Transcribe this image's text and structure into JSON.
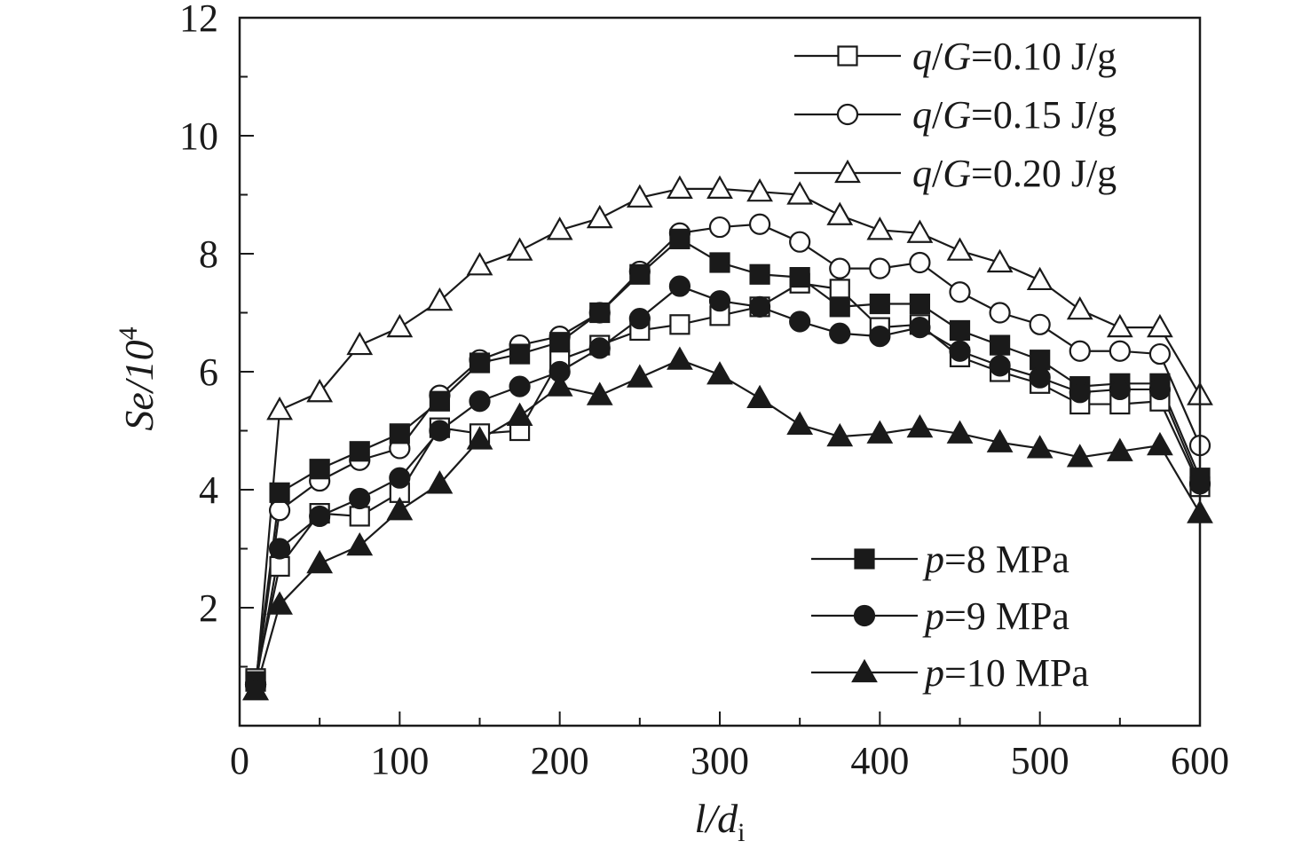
{
  "chart_data": {
    "type": "line",
    "xlabel": {
      "main": "l/d",
      "sub": "i"
    },
    "ylabel": {
      "main": "Se/10",
      "sup": "4"
    },
    "xlim": [
      0,
      600
    ],
    "ylim": [
      0,
      12
    ],
    "xticks": [
      0,
      100,
      200,
      300,
      400,
      500,
      600
    ],
    "yticks": [
      2,
      4,
      6,
      8,
      10,
      12
    ],
    "x": [
      10,
      25,
      50,
      75,
      100,
      125,
      150,
      175,
      200,
      225,
      250,
      275,
      300,
      325,
      350,
      375,
      400,
      425,
      450,
      475,
      500,
      525,
      550,
      575,
      600
    ],
    "series": [
      {
        "name": "q/G=0.10 J/g",
        "marker": "square",
        "filled": false,
        "values": [
          0.8,
          2.7,
          3.6,
          3.55,
          3.95,
          5.05,
          4.95,
          5.0,
          6.2,
          6.45,
          6.7,
          6.8,
          6.95,
          7.1,
          7.5,
          7.4,
          6.75,
          6.8,
          6.25,
          6.0,
          5.8,
          5.45,
          5.45,
          5.5,
          4.05
        ]
      },
      {
        "name": "q/G=0.15 J/g",
        "marker": "circle",
        "filled": false,
        "values": [
          0.7,
          3.65,
          4.15,
          4.5,
          4.7,
          5.6,
          6.2,
          6.45,
          6.6,
          7.0,
          7.7,
          8.35,
          8.45,
          8.5,
          8.2,
          7.75,
          7.75,
          7.85,
          7.35,
          7.0,
          6.8,
          6.35,
          6.35,
          6.3,
          4.75
        ]
      },
      {
        "name": "q/G=0.20 J/g",
        "marker": "triangle",
        "filled": false,
        "values": [
          0.6,
          5.35,
          5.65,
          6.45,
          6.75,
          7.2,
          7.8,
          8.05,
          8.4,
          8.6,
          8.95,
          9.1,
          9.1,
          9.05,
          9.0,
          8.65,
          8.4,
          8.35,
          8.05,
          7.85,
          7.55,
          7.05,
          6.75,
          6.75,
          5.6
        ]
      },
      {
        "name": "p=8 MPa",
        "marker": "square",
        "filled": true,
        "values": [
          0.75,
          3.95,
          4.35,
          4.65,
          4.95,
          5.5,
          6.15,
          6.3,
          6.5,
          7.0,
          7.65,
          8.25,
          7.85,
          7.65,
          7.6,
          7.1,
          7.15,
          7.15,
          6.7,
          6.45,
          6.2,
          5.75,
          5.8,
          5.8,
          4.2
        ]
      },
      {
        "name": "p=9 MPa",
        "marker": "circle",
        "filled": true,
        "values": [
          0.7,
          3.0,
          3.55,
          3.85,
          4.2,
          5.0,
          5.5,
          5.75,
          6.0,
          6.4,
          6.9,
          7.45,
          7.2,
          7.1,
          6.85,
          6.65,
          6.6,
          6.75,
          6.35,
          6.1,
          5.9,
          5.65,
          5.7,
          5.7,
          4.1
        ]
      },
      {
        "name": "p=10 MPa",
        "marker": "triangle",
        "filled": true,
        "values": [
          0.6,
          2.05,
          2.75,
          3.05,
          3.65,
          4.1,
          4.85,
          5.25,
          5.75,
          5.6,
          5.9,
          6.2,
          5.95,
          5.55,
          5.1,
          4.9,
          4.95,
          5.05,
          4.95,
          4.8,
          4.7,
          4.55,
          4.65,
          4.75,
          3.6
        ]
      }
    ],
    "legend_top": {
      "placement": "top-right",
      "items": [
        "q/G=0.10 J/g",
        "q/G=0.15 J/g",
        "q/G=0.20 J/g"
      ]
    },
    "legend_bottom": {
      "placement": "bottom-right",
      "items": [
        "p=8 MPa",
        "p=9 MPa",
        "p=10 MPa"
      ]
    },
    "grid": false
  }
}
